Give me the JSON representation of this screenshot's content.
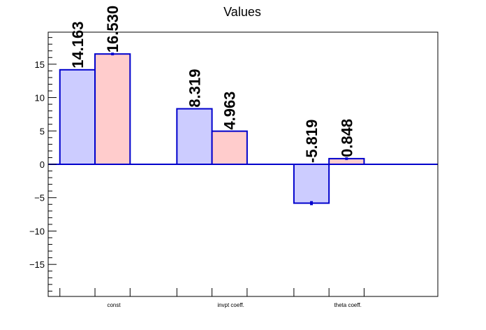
{
  "chart_data": {
    "type": "bar",
    "title": "Values",
    "xlabel": "",
    "ylabel": "",
    "categories": [
      "const",
      "invpt coeff.",
      "theta coeff."
    ],
    "series": [
      {
        "values": [
          14.163,
          8.319,
          -5.819
        ],
        "labels": [
          "14.163",
          "8.319",
          "-5.819"
        ],
        "errors": [
          0,
          0,
          0.3
        ]
      },
      {
        "values": [
          16.53,
          4.963,
          0.848
        ],
        "labels": [
          "16.530",
          "4.963",
          "0.848"
        ],
        "errors": [
          0.2,
          0,
          0.2
        ]
      }
    ],
    "ylim": [
      -19.8,
      19.8
    ],
    "yticks": [
      -15,
      -10,
      -5,
      0,
      5,
      10,
      15
    ],
    "ytick_labels": [
      "−15",
      "−10",
      "−5",
      "0",
      "5",
      "10",
      "15"
    ],
    "grid": false,
    "legend": false
  },
  "colors": {
    "series_fills": [
      "#ccccff",
      "#ffcccc"
    ],
    "bar_outline": "#0000cc",
    "zero_line": "#0000cc",
    "axis": "#000000"
  }
}
